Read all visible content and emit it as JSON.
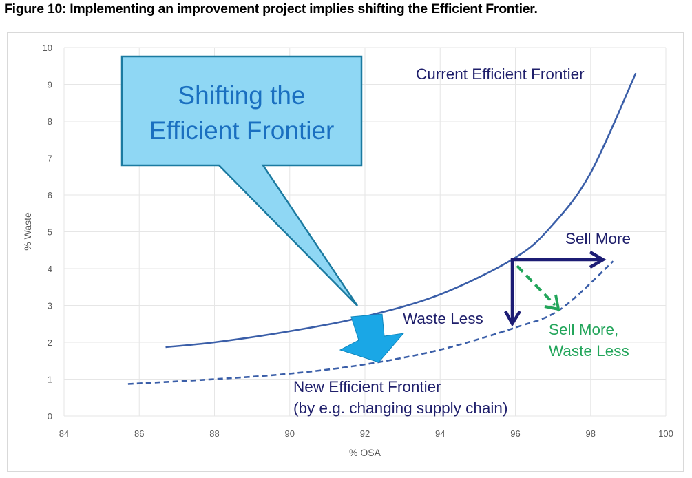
{
  "figure": {
    "title": "Figure 10: Implementing an improvement project implies shifting the Efficient Frontier."
  },
  "chart_data": {
    "type": "line",
    "title": "Figure 10: Implementing an improvement project implies shifting the Efficient Frontier.",
    "xlabel": "% OSA",
    "ylabel": "% Waste",
    "xlim": [
      84,
      100
    ],
    "ylim": [
      0,
      10
    ],
    "x_ticks": [
      "84",
      "86",
      "88",
      "90",
      "92",
      "94",
      "96",
      "98",
      "100"
    ],
    "y_ticks": [
      "0",
      "1",
      "2",
      "3",
      "4",
      "5",
      "6",
      "7",
      "8",
      "9",
      "10"
    ],
    "grid": true,
    "legend": "none (inline labels)",
    "series": [
      {
        "name": "Current Efficient Frontier",
        "style": "solid",
        "color": "#3a5ea8",
        "x": [
          86.7,
          88,
          90,
          92,
          94,
          96,
          97,
          98,
          99.2
        ],
        "y": [
          1.87,
          2.0,
          2.3,
          2.7,
          3.3,
          4.3,
          5.2,
          6.6,
          9.3
        ]
      },
      {
        "name": "New Efficient Frontier",
        "style": "dashed",
        "color": "#3a5ea8",
        "x": [
          85.7,
          88,
          90,
          92,
          94,
          96,
          97.2,
          98.6
        ],
        "y": [
          0.87,
          1.0,
          1.15,
          1.4,
          1.8,
          2.4,
          2.9,
          4.2
        ]
      }
    ],
    "annotations": [
      {
        "text": "Shifting the Efficient Frontier",
        "type": "callout",
        "points_to": [
          91.8,
          2.95
        ]
      },
      {
        "text": "Current Efficient Frontier",
        "type": "label",
        "near": [
          95,
          9.3
        ]
      },
      {
        "text": "New Efficient Frontier (by e.g. changing supply chain)",
        "type": "label",
        "near": [
          94,
          0.6
        ]
      },
      {
        "text": "Sell More",
        "type": "arrow",
        "from": [
          96,
          4.3
        ],
        "to": [
          98.5,
          4.3
        ],
        "color": "#1c1c74"
      },
      {
        "text": "Waste Less",
        "type": "arrow",
        "from": [
          96,
          4.3
        ],
        "to": [
          96,
          2.45
        ],
        "color": "#1c1c74"
      },
      {
        "text": "Sell More, Waste Less",
        "type": "dashed-arrow",
        "from": [
          96.1,
          4.2
        ],
        "to": [
          97.2,
          2.95
        ],
        "color": "#22a55a"
      },
      {
        "text": "",
        "type": "block-arrow",
        "from": [
          92.3,
          2.6
        ],
        "to": [
          92.3,
          1.5
        ],
        "color": "#1aa7e6"
      }
    ]
  },
  "labels": {
    "callout_line1": "Shifting the",
    "callout_line2": "Efficient Frontier",
    "current_frontier": "Current Efficient Frontier",
    "new_frontier_line1": "New Efficient Frontier",
    "new_frontier_line2": "(by e.g. changing supply chain)",
    "sell_more": "Sell More",
    "waste_less": "Waste Less",
    "sell_more_waste_less_line1": "Sell More,",
    "sell_more_waste_less_line2": "Waste Less"
  },
  "colors": {
    "curve": "#3a5ea8",
    "navy_arrow": "#1c1c74",
    "green_arrow": "#22a55a",
    "callout_fill": "#8fd7f4",
    "callout_stroke": "#1b7aa0",
    "block_arrow": "#1aa7e6"
  }
}
